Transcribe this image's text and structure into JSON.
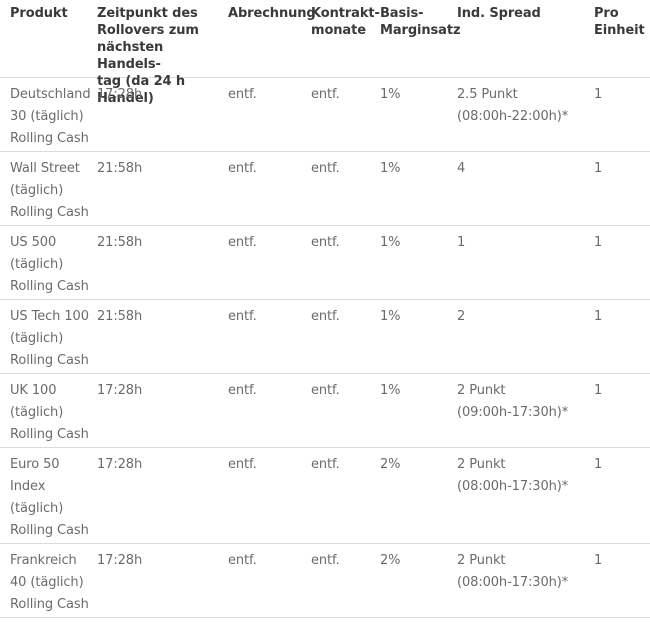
{
  "table": {
    "headers": [
      "Produkt",
      "Zeitpunkt des\nRollovers zum\nnächsten Handels-\ntag (da 24 h Handel)",
      "Abrechnung",
      "Kontrakt-\nmonate",
      "Basis-\nMarginsatz",
      "Ind. Spread",
      "Pro\nEinheit"
    ],
    "rows": [
      [
        "Deutschland\n30 (täglich)\nRolling Cash",
        "17:28h",
        "entf.",
        "entf.",
        "1%",
        "2.5 Punkt\n(08:00h-22:00h)*",
        "1"
      ],
      [
        "Wall Street\n(täglich)\nRolling Cash",
        "21:58h",
        "entf.",
        "entf.",
        "1%",
        "4",
        "1"
      ],
      [
        "US 500\n(täglich)\nRolling Cash",
        "21:58h",
        "entf.",
        "entf.",
        "1%",
        "1",
        "1"
      ],
      [
        "US Tech 100\n(täglich)\nRolling Cash",
        "21:58h",
        "entf.",
        "entf.",
        "1%",
        "2",
        "1"
      ],
      [
        "UK 100\n(täglich)\nRolling Cash",
        "17:28h",
        "entf.",
        "entf.",
        "1%",
        "2 Punkt\n(09:00h-17:30h)*",
        "1"
      ],
      [
        "Euro 50\nIndex\n(täglich)\nRolling Cash",
        "17:28h",
        "entf.",
        "entf.",
        "2%",
        "2 Punkt\n(08:00h-17:30h)*",
        "1"
      ],
      [
        "Frankreich\n40 (täglich)\nRolling Cash",
        "17:28h",
        "entf.",
        "entf.",
        "2%",
        "2 Punkt\n(08:00h-17:30h)*",
        "1"
      ]
    ]
  }
}
